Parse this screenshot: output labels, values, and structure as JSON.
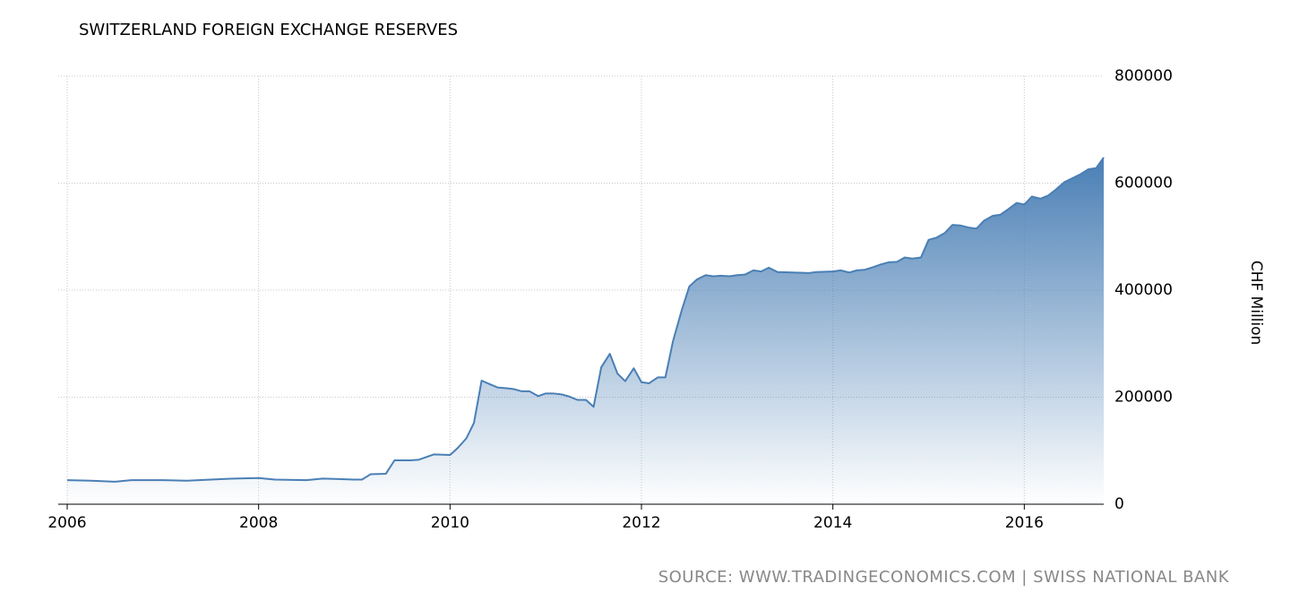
{
  "chart_data": {
    "type": "area",
    "title": "SWITZERLAND FOREIGN EXCHANGE RESERVES",
    "y_label": "CHF Million",
    "source": "SOURCE: WWW.TRADINGECONOMICS.COM | SWISS NATIONAL BANK",
    "color": "#4a7fb5",
    "grid": true,
    "xlim": [
      2006,
      2016.83
    ],
    "xticks": [
      2006,
      2008,
      2010,
      2012,
      2014,
      2016
    ],
    "ylim": [
      0,
      800000
    ],
    "yticks": [
      0,
      200000,
      400000,
      600000,
      800000
    ],
    "x": [
      2006,
      2006.25,
      2006.5,
      2006.67,
      2007,
      2007.25,
      2007.5,
      2007.75,
      2008,
      2008.17,
      2008.5,
      2008.67,
      2009,
      2009.08,
      2009.17,
      2009.33,
      2009.42,
      2009.58,
      2009.67,
      2009.83,
      2010,
      2010.08,
      2010.17,
      2010.25,
      2010.33,
      2010.42,
      2010.5,
      2010.58,
      2010.67,
      2010.75,
      2010.83,
      2010.92,
      2011,
      2011.08,
      2011.17,
      2011.25,
      2011.33,
      2011.42,
      2011.5,
      2011.58,
      2011.67,
      2011.75,
      2011.83,
      2011.92,
      2012,
      2012.08,
      2012.17,
      2012.25,
      2012.33,
      2012.42,
      2012.5,
      2012.58,
      2012.67,
      2012.75,
      2012.83,
      2012.92,
      2013,
      2013.08,
      2013.17,
      2013.25,
      2013.33,
      2013.42,
      2013.58,
      2013.75,
      2013.83,
      2014,
      2014.08,
      2014.17,
      2014.25,
      2014.33,
      2014.42,
      2014.5,
      2014.58,
      2014.67,
      2014.75,
      2014.83,
      2014.92,
      2015,
      2015.08,
      2015.17,
      2015.25,
      2015.33,
      2015.42,
      2015.5,
      2015.58,
      2015.67,
      2015.75,
      2015.83,
      2015.92,
      2016,
      2016.08,
      2016.17,
      2016.25,
      2016.33,
      2016.42,
      2016.5,
      2016.58,
      2016.67,
      2016.75,
      2016.83
    ],
    "values": [
      45000,
      44000,
      42000,
      45000,
      45000,
      44000,
      46000,
      48000,
      49000,
      46000,
      45000,
      48000,
      46000,
      46000,
      56000,
      57000,
      82000,
      82000,
      83000,
      93000,
      92000,
      105000,
      123000,
      152000,
      231000,
      224000,
      218000,
      217000,
      215000,
      211000,
      211000,
      202000,
      207000,
      207000,
      205000,
      201000,
      195000,
      195000,
      182000,
      256000,
      281000,
      244000,
      230000,
      254000,
      228000,
      226000,
      237000,
      237000,
      305000,
      362000,
      407000,
      420000,
      428000,
      426000,
      427000,
      426000,
      428000,
      429000,
      437000,
      435000,
      442000,
      434000,
      433000,
      432000,
      434000,
      435000,
      437000,
      433000,
      437000,
      438000,
      443000,
      448000,
      452000,
      453000,
      461000,
      459000,
      461000,
      494000,
      498000,
      507000,
      522000,
      521000,
      517000,
      515000,
      530000,
      539000,
      541000,
      551000,
      563000,
      560000,
      575000,
      571000,
      577000,
      588000,
      602000,
      609000,
      616000,
      626000,
      628000,
      648000
    ]
  }
}
